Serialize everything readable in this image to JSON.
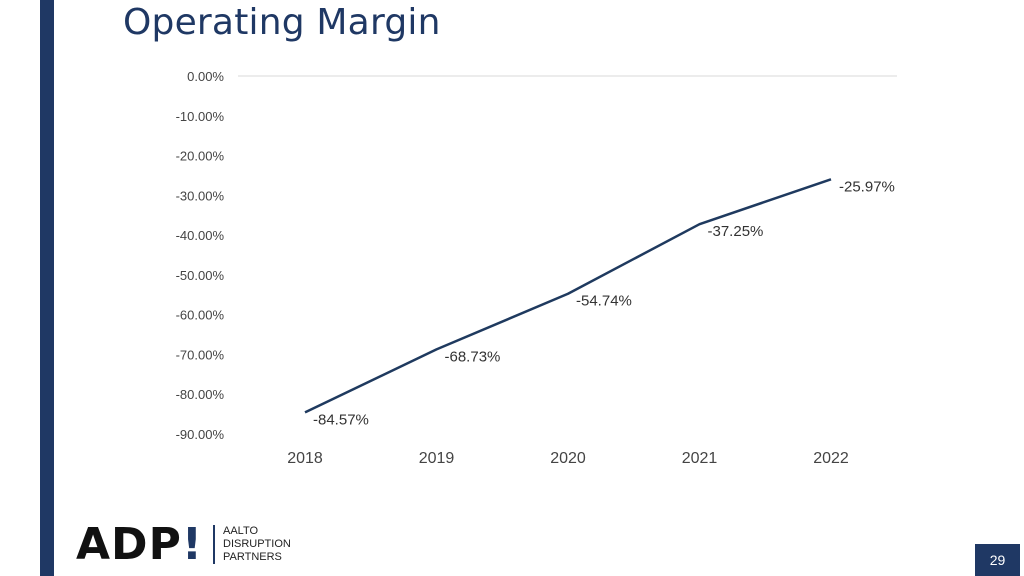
{
  "slide": {
    "title": "Operating Margin",
    "page_number": "29"
  },
  "logo": {
    "letters": "ADP",
    "mark": "!",
    "line1": "AALTO",
    "line2": "DISRUPTION",
    "line3": "PARTNERS"
  },
  "colors": {
    "accent": "#1f3864",
    "line": "#1f3a5f",
    "axis_text": "#444444",
    "grid": "#d9d9d9"
  },
  "chart_data": {
    "type": "line",
    "title": "",
    "xlabel": "",
    "ylabel": "",
    "categories": [
      "2018",
      "2019",
      "2020",
      "2021",
      "2022"
    ],
    "series": [
      {
        "name": "Operating Margin",
        "values": [
          -84.57,
          -68.73,
          -54.74,
          -37.25,
          -25.97
        ],
        "labels": [
          "-84.57%",
          "-68.73%",
          "-54.74%",
          "-37.25%",
          "-25.97%"
        ]
      }
    ],
    "ylim": [
      -90,
      0
    ],
    "yticks": [
      0,
      -10,
      -20,
      -30,
      -40,
      -50,
      -60,
      -70,
      -80,
      -90
    ],
    "ytick_labels": [
      "0.00%",
      "-10.00%",
      "-20.00%",
      "-30.00%",
      "-40.00%",
      "-50.00%",
      "-60.00%",
      "-70.00%",
      "-80.00%",
      "-90.00%"
    ],
    "grid": false,
    "legend": "none"
  }
}
